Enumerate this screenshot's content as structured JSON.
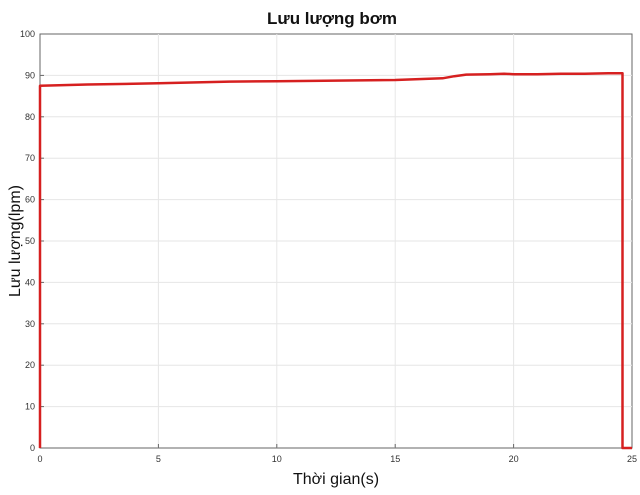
{
  "chart_data": {
    "type": "line",
    "title": "Lưu lượng bơm",
    "xlabel": "Thời gian(s)",
    "ylabel": "Lưu lượng(lpm)",
    "xlim": [
      0,
      25
    ],
    "ylim": [
      0,
      100
    ],
    "xticks": [
      "0",
      "5",
      "10",
      "15",
      "20",
      "25"
    ],
    "yticks": [
      "0",
      "10",
      "20",
      "30",
      "40",
      "50",
      "60",
      "70",
      "80",
      "90",
      "100"
    ],
    "grid": true,
    "line_color": "#d62020",
    "series": [
      {
        "x": [
          0,
          0,
          2,
          5,
          8,
          10,
          12,
          15,
          17,
          17.5,
          18,
          19,
          19.6,
          20,
          21,
          22,
          23,
          24,
          24.6,
          24.6,
          25
        ],
        "y": [
          0,
          87.5,
          87.8,
          88.1,
          88.5,
          88.6,
          88.7,
          88.9,
          89.3,
          89.8,
          90.2,
          90.3,
          90.4,
          90.3,
          90.3,
          90.4,
          90.4,
          90.5,
          90.5,
          0,
          0
        ]
      }
    ]
  }
}
